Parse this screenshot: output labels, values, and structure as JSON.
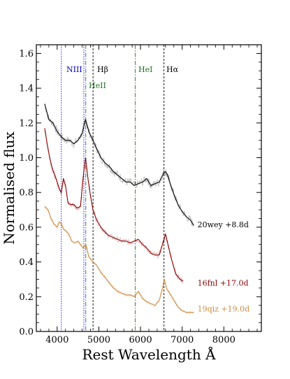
{
  "chart_data": {
    "type": "line",
    "xlabel": "Rest Wavelength Å",
    "ylabel": "Normalised flux",
    "xlim": [
      3500,
      8900
    ],
    "ylim": [
      0.0,
      1.65
    ],
    "xticks": [
      4000,
      5000,
      6000,
      7000,
      8000
    ],
    "yticks": [
      0.0,
      0.2,
      0.4,
      0.6,
      0.8,
      1.0,
      1.2,
      1.4,
      1.6
    ],
    "grid": false,
    "legend": "none",
    "line_markers": [
      {
        "label": "NIII",
        "x": 4100,
        "color": "#0000cc",
        "style": "dotted"
      },
      {
        "label": "",
        "x": 4640,
        "color": "#0000cc",
        "style": "dotted"
      },
      {
        "label": "HeII",
        "x": 4686,
        "color": "#1f6f1f",
        "style": "dashdot"
      },
      {
        "label": "Hβ",
        "x": 4861,
        "color": "#000000",
        "style": "dashed"
      },
      {
        "label": "HeI",
        "x": 5876,
        "color": "#1f6f1f",
        "style": "dashdot"
      },
      {
        "label": "Hα",
        "x": 6563,
        "color": "#000000",
        "style": "dashed"
      }
    ],
    "series": [
      {
        "name": "20wey +8.8d",
        "color": "#000000",
        "label_color": "#000000",
        "label_anchor_x": 7300,
        "label_anchor_y": 0.615,
        "x": [
          3700,
          3800,
          3900,
          4000,
          4100,
          4200,
          4300,
          4400,
          4500,
          4600,
          4680,
          4760,
          4860,
          4950,
          5050,
          5150,
          5250,
          5350,
          5450,
          5550,
          5650,
          5750,
          5850,
          5950,
          6050,
          6150,
          6250,
          6350,
          6450,
          6550,
          6600,
          6650,
          6700,
          6800,
          6900,
          7000,
          7100,
          7200,
          7280
        ],
        "y": [
          1.31,
          1.22,
          1.2,
          1.15,
          1.12,
          1.1,
          1.1,
          1.08,
          1.1,
          1.14,
          1.22,
          1.15,
          1.1,
          1.05,
          1.0,
          0.97,
          0.95,
          0.92,
          0.9,
          0.88,
          0.86,
          0.86,
          0.84,
          0.85,
          0.86,
          0.88,
          0.84,
          0.85,
          0.86,
          0.91,
          0.92,
          0.9,
          0.86,
          0.79,
          0.73,
          0.69,
          0.66,
          0.64,
          0.61
        ]
      },
      {
        "name": "16fnl +17.0d",
        "color": "#8b0000",
        "label_color": "#8b0000",
        "label_anchor_x": 7300,
        "label_anchor_y": 0.28,
        "x": [
          3700,
          3760,
          3820,
          3880,
          3940,
          4000,
          4050,
          4100,
          4150,
          4200,
          4260,
          4320,
          4400,
          4480,
          4560,
          4620,
          4680,
          4740,
          4800,
          4860,
          4950,
          5050,
          5150,
          5250,
          5350,
          5450,
          5550,
          5650,
          5750,
          5850,
          5950,
          6050,
          6150,
          6250,
          6350,
          6450,
          6550,
          6600,
          6650,
          6750,
          6850,
          6950,
          7020
        ],
        "y": [
          1.17,
          1.08,
          1.0,
          0.94,
          0.9,
          0.86,
          0.82,
          0.8,
          0.88,
          0.84,
          0.74,
          0.73,
          0.73,
          0.71,
          0.72,
          0.88,
          1.0,
          0.88,
          0.78,
          0.7,
          0.64,
          0.6,
          0.57,
          0.55,
          0.54,
          0.53,
          0.52,
          0.52,
          0.51,
          0.52,
          0.53,
          0.5,
          0.48,
          0.45,
          0.44,
          0.44,
          0.52,
          0.56,
          0.51,
          0.41,
          0.33,
          0.3,
          0.29
        ]
      },
      {
        "name": "19qiz +19.0d",
        "color": "#d08a3c",
        "label_color": "#d08a3c",
        "label_anchor_x": 7300,
        "label_anchor_y": 0.13,
        "x": [
          3700,
          3780,
          3850,
          3920,
          4000,
          4050,
          4100,
          4150,
          4200,
          4280,
          4350,
          4420,
          4500,
          4560,
          4620,
          4690,
          4760,
          4860,
          4950,
          5050,
          5150,
          5250,
          5350,
          5450,
          5550,
          5650,
          5750,
          5850,
          5950,
          6050,
          6150,
          6250,
          6350,
          6450,
          6530,
          6570,
          6620,
          6700,
          6800,
          6900,
          7000,
          7100,
          7200,
          7280
        ],
        "y": [
          0.72,
          0.7,
          0.65,
          0.62,
          0.6,
          0.63,
          0.62,
          0.59,
          0.58,
          0.56,
          0.52,
          0.51,
          0.52,
          0.5,
          0.48,
          0.5,
          0.43,
          0.4,
          0.38,
          0.34,
          0.31,
          0.28,
          0.25,
          0.23,
          0.22,
          0.21,
          0.21,
          0.2,
          0.23,
          0.19,
          0.17,
          0.16,
          0.15,
          0.18,
          0.25,
          0.3,
          0.25,
          0.22,
          0.18,
          0.14,
          0.12,
          0.11,
          0.11,
          0.11
        ]
      }
    ]
  }
}
